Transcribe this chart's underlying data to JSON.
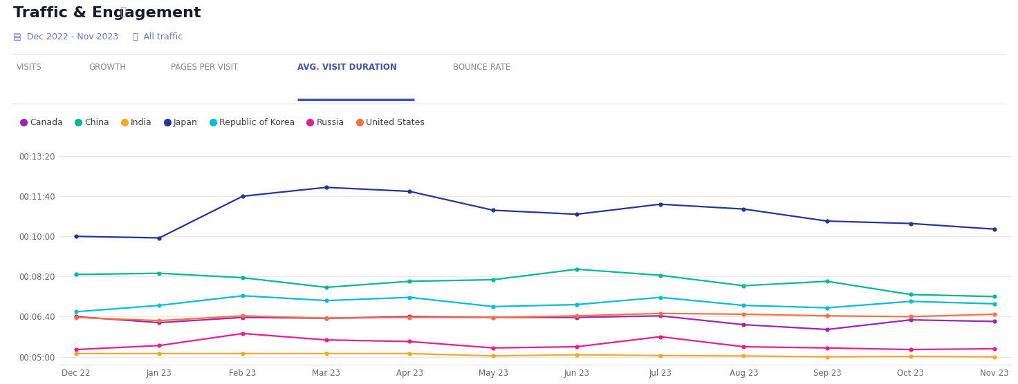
{
  "title": "Traffic & Engagement",
  "subtitle_date": "Dec 2022 - Nov 2023",
  "subtitle_filter": "All traffic",
  "tab_labels": [
    "VISITS",
    "GROWTH",
    "PAGES PER VISIT",
    "AVG. VISIT DURATION",
    "BOUNCE RATE"
  ],
  "active_tab": "AVG. VISIT DURATION",
  "x_labels": [
    "Dec 22",
    "Jan 23",
    "Feb 23",
    "Mar 23",
    "Apr 23",
    "May 23",
    "Jun 23",
    "Jul 23",
    "Aug 23",
    "Sep 23",
    "Oct 23",
    "Nov 23"
  ],
  "y_ticks_seconds": [
    300,
    400,
    500,
    600,
    700,
    800
  ],
  "y_tick_labels": [
    "00:05:00",
    "00:06:40",
    "00:08:20",
    "00:10:00",
    "00:11:40",
    "00:13:20"
  ],
  "ylim": [
    280,
    830
  ],
  "series": [
    {
      "name": "Canada",
      "color": "#9c27b0",
      "data_seconds": [
        400,
        385,
        398,
        396,
        400,
        398,
        398,
        402,
        380,
        368,
        392,
        388
      ]
    },
    {
      "name": "China",
      "color": "#00b894",
      "data_seconds": [
        505,
        508,
        497,
        473,
        488,
        492,
        518,
        503,
        477,
        488,
        455,
        450
      ]
    },
    {
      "name": "India",
      "color": "#f9a825",
      "data_seconds": [
        308,
        308,
        308,
        308,
        308,
        302,
        305,
        303,
        302,
        300,
        301,
        300
      ]
    },
    {
      "name": "Japan",
      "color": "#283593",
      "data_seconds": [
        600,
        596,
        700,
        722,
        712,
        665,
        655,
        680,
        668,
        638,
        632,
        618
      ]
    },
    {
      "name": "Republic of Korea",
      "color": "#00bcd4",
      "data_seconds": [
        412,
        428,
        452,
        440,
        448,
        425,
        430,
        448,
        428,
        422,
        438,
        432
      ]
    },
    {
      "name": "Russia",
      "color": "#e91e8c",
      "data_seconds": [
        318,
        328,
        358,
        342,
        338,
        322,
        325,
        350,
        325,
        322,
        318,
        320
      ]
    },
    {
      "name": "United States",
      "color": "#ff7043",
      "data_seconds": [
        398,
        390,
        402,
        396,
        398,
        398,
        402,
        408,
        406,
        402,
        400,
        406
      ]
    }
  ],
  "background_color": "#ffffff",
  "grid_color": "#e8e8e8",
  "title_color": "#1a1a2e",
  "subtitle_color": "#6777c4",
  "tab_color": "#888888",
  "active_tab_color": "#3f51b5",
  "legend_text_color": "#444444",
  "separator_color": "#e0e0e0"
}
